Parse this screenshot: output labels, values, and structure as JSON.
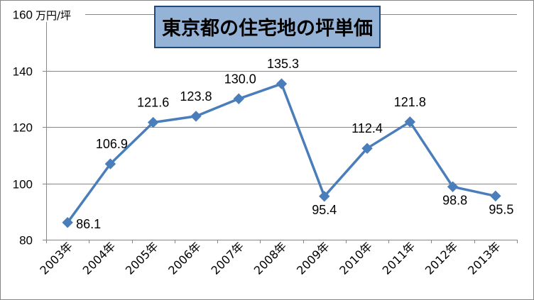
{
  "chart_data": {
    "type": "line",
    "title": "東京都の住宅地の坪単価",
    "ylabel": "万円/坪",
    "xlabel": "",
    "categories": [
      "2003年",
      "2004年",
      "2005年",
      "2006年",
      "2007年",
      "2008年",
      "2009年",
      "2010年",
      "2011年",
      "2012年",
      "2013年"
    ],
    "series": [
      {
        "values": [
          86.1,
          106.9,
          121.6,
          123.8,
          130.0,
          135.3,
          95.4,
          112.4,
          121.8,
          98.8,
          95.5
        ]
      }
    ],
    "ylim": [
      80,
      160
    ],
    "yticks": [
      80,
      100,
      120,
      140,
      160
    ],
    "grid": true,
    "legend": "none",
    "marker": "diamond",
    "data_labels": true
  },
  "colors": {
    "series": "#4a7ebb",
    "grid": "#868686",
    "title_box_fill": "#95b3d7",
    "title_box_border": "#1f497d"
  }
}
